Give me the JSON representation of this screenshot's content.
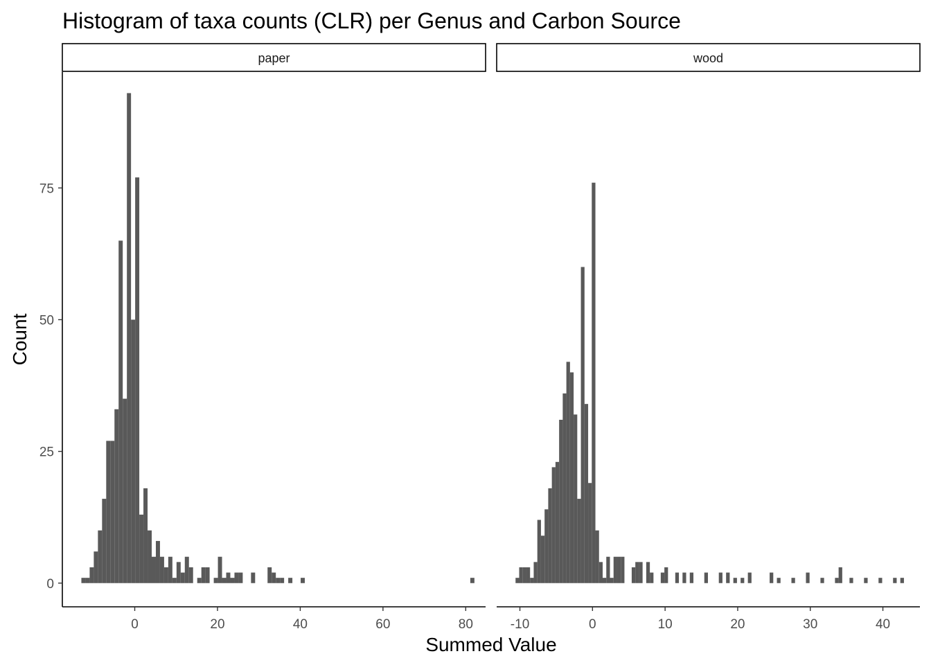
{
  "chart_data": {
    "type": "bar",
    "title": "Histogram of taxa counts (CLR) per Genus and Carbon Source",
    "xlabel": "Summed Value",
    "ylabel": "Count",
    "ylim": [
      -4.5,
      97
    ],
    "y_ticks": [
      0,
      25,
      50,
      75
    ],
    "grid": false,
    "facets": [
      {
        "name": "paper",
        "xlim": [
          -17.5,
          84.8
        ],
        "x_ticks": [
          0,
          20,
          40,
          60,
          80
        ],
        "bins": [
          {
            "x": -12.4,
            "count": 1
          },
          {
            "x": -11.4,
            "count": 1
          },
          {
            "x": -10.4,
            "count": 3
          },
          {
            "x": -9.4,
            "count": 6
          },
          {
            "x": -8.4,
            "count": 10
          },
          {
            "x": -7.4,
            "count": 16
          },
          {
            "x": -6.4,
            "count": 27
          },
          {
            "x": -5.4,
            "count": 27
          },
          {
            "x": -4.4,
            "count": 33
          },
          {
            "x": -3.4,
            "count": 65
          },
          {
            "x": -2.4,
            "count": 35
          },
          {
            "x": -1.4,
            "count": 93
          },
          {
            "x": -0.4,
            "count": 50
          },
          {
            "x": 0.6,
            "count": 77
          },
          {
            "x": 1.6,
            "count": 13
          },
          {
            "x": 2.6,
            "count": 18
          },
          {
            "x": 3.6,
            "count": 10
          },
          {
            "x": 4.6,
            "count": 5
          },
          {
            "x": 5.6,
            "count": 8
          },
          {
            "x": 6.6,
            "count": 5
          },
          {
            "x": 7.6,
            "count": 3
          },
          {
            "x": 8.6,
            "count": 5
          },
          {
            "x": 9.6,
            "count": 1
          },
          {
            "x": 10.6,
            "count": 4
          },
          {
            "x": 11.6,
            "count": 2
          },
          {
            "x": 12.6,
            "count": 5
          },
          {
            "x": 13.6,
            "count": 3
          },
          {
            "x": 15.6,
            "count": 1
          },
          {
            "x": 16.6,
            "count": 3
          },
          {
            "x": 17.6,
            "count": 3
          },
          {
            "x": 19.6,
            "count": 1
          },
          {
            "x": 20.6,
            "count": 5
          },
          {
            "x": 21.6,
            "count": 1
          },
          {
            "x": 22.6,
            "count": 2
          },
          {
            "x": 23.6,
            "count": 1
          },
          {
            "x": 24.6,
            "count": 2
          },
          {
            "x": 25.6,
            "count": 2
          },
          {
            "x": 28.6,
            "count": 2
          },
          {
            "x": 32.6,
            "count": 3
          },
          {
            "x": 33.6,
            "count": 2
          },
          {
            "x": 34.6,
            "count": 1
          },
          {
            "x": 35.6,
            "count": 1
          },
          {
            "x": 37.6,
            "count": 1
          },
          {
            "x": 40.6,
            "count": 1
          },
          {
            "x": 81.6,
            "count": 1
          }
        ]
      },
      {
        "name": "wood",
        "xlim": [
          -13.2,
          45.1
        ],
        "x_ticks": [
          -10,
          0,
          10,
          20,
          30,
          40
        ],
        "bins": [
          {
            "x": -10.35,
            "count": 1
          },
          {
            "x": -9.85,
            "count": 3
          },
          {
            "x": -9.35,
            "count": 3
          },
          {
            "x": -8.85,
            "count": 3
          },
          {
            "x": -8.35,
            "count": 1
          },
          {
            "x": -7.85,
            "count": 4
          },
          {
            "x": -7.35,
            "count": 12
          },
          {
            "x": -6.85,
            "count": 9
          },
          {
            "x": -6.35,
            "count": 14
          },
          {
            "x": -5.85,
            "count": 18
          },
          {
            "x": -5.35,
            "count": 22
          },
          {
            "x": -4.85,
            "count": 23
          },
          {
            "x": -4.35,
            "count": 31
          },
          {
            "x": -3.85,
            "count": 36
          },
          {
            "x": -3.35,
            "count": 42
          },
          {
            "x": -2.85,
            "count": 40
          },
          {
            "x": -2.35,
            "count": 32
          },
          {
            "x": -1.85,
            "count": 16
          },
          {
            "x": -1.35,
            "count": 60
          },
          {
            "x": -0.85,
            "count": 34
          },
          {
            "x": -0.35,
            "count": 19
          },
          {
            "x": 0.15,
            "count": 76
          },
          {
            "x": 0.65,
            "count": 10
          },
          {
            "x": 1.15,
            "count": 4
          },
          {
            "x": 1.65,
            "count": 1
          },
          {
            "x": 2.15,
            "count": 5
          },
          {
            "x": 2.65,
            "count": 1
          },
          {
            "x": 3.15,
            "count": 5
          },
          {
            "x": 3.65,
            "count": 5
          },
          {
            "x": 4.15,
            "count": 5
          },
          {
            "x": 5.65,
            "count": 3
          },
          {
            "x": 6.15,
            "count": 4
          },
          {
            "x": 6.65,
            "count": 4
          },
          {
            "x": 7.65,
            "count": 4
          },
          {
            "x": 8.15,
            "count": 2
          },
          {
            "x": 9.65,
            "count": 2
          },
          {
            "x": 10.15,
            "count": 3
          },
          {
            "x": 11.65,
            "count": 2
          },
          {
            "x": 12.65,
            "count": 2
          },
          {
            "x": 13.65,
            "count": 2
          },
          {
            "x": 15.65,
            "count": 2
          },
          {
            "x": 17.65,
            "count": 2
          },
          {
            "x": 18.65,
            "count": 2
          },
          {
            "x": 19.65,
            "count": 1
          },
          {
            "x": 20.65,
            "count": 1
          },
          {
            "x": 21.65,
            "count": 2
          },
          {
            "x": 24.65,
            "count": 2
          },
          {
            "x": 25.65,
            "count": 1
          },
          {
            "x": 27.65,
            "count": 1
          },
          {
            "x": 29.65,
            "count": 2
          },
          {
            "x": 31.65,
            "count": 1
          },
          {
            "x": 33.65,
            "count": 1
          },
          {
            "x": 34.15,
            "count": 3
          },
          {
            "x": 35.65,
            "count": 1
          },
          {
            "x": 37.65,
            "count": 1
          },
          {
            "x": 39.65,
            "count": 1
          },
          {
            "x": 41.65,
            "count": 1
          },
          {
            "x": 42.65,
            "count": 1
          }
        ]
      }
    ]
  }
}
